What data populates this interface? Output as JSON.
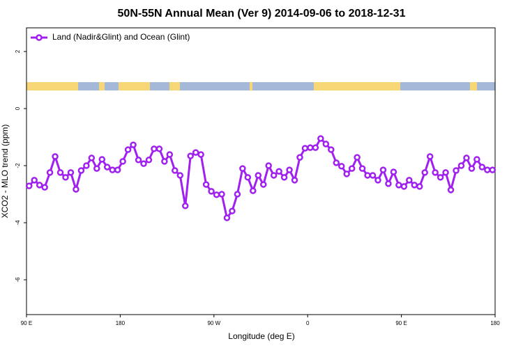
{
  "chart_data": {
    "type": "line",
    "title": "50N-55N Annual Mean (Ver 9)   2014-09-06 to 2018-12-31",
    "x_label": "Longitude (deg E)",
    "y_label": "XCO2 - MLO trend (ppm)",
    "x": [
      92.5,
      97.5,
      102.5,
      107.5,
      112.5,
      117.5,
      122.5,
      127.5,
      132.5,
      137.5,
      142.5,
      147.5,
      152.5,
      157.5,
      162.5,
      167.5,
      172.5,
      177.5,
      182.5,
      187.5,
      192.5,
      197.5,
      202.5,
      207.5,
      212.5,
      217.5,
      222.5,
      227.5,
      232.5,
      237.5,
      242.5,
      247.5,
      252.5,
      257.5,
      262.5,
      267.5,
      272.5,
      277.5,
      282.5,
      287.5,
      292.5,
      297.5,
      302.5,
      307.5,
      312.5,
      317.5,
      322.5,
      327.5,
      332.5,
      337.5,
      342.5,
      347.5,
      352.5,
      357.5,
      362.5,
      367.5,
      372.5,
      377.5,
      382.5,
      387.5,
      392.5,
      397.5,
      402.5,
      407.5,
      412.5,
      417.5,
      422.5,
      427.5,
      432.5,
      437.5,
      442.5,
      447.5,
      452.5,
      457.5,
      462.5,
      467.5,
      472.5,
      477.5,
      482.5,
      487.5,
      492.5,
      497.5,
      502.5,
      507.5,
      512.5,
      517.5,
      522.5,
      527.5,
      532.5,
      537.5
    ],
    "series": [
      {
        "name": "Land (Nadir&Glint) and Ocean (Glint)",
        "color": "#a020f0",
        "values": [
          -2.71,
          -2.51,
          -2.68,
          -2.76,
          -2.24,
          -1.68,
          -2.24,
          -2.41,
          -2.24,
          -2.83,
          -2.17,
          -2.0,
          -1.73,
          -2.1,
          -1.78,
          -2.05,
          -2.15,
          -2.15,
          -1.85,
          -1.44,
          -1.27,
          -1.8,
          -1.93,
          -1.8,
          -1.41,
          -1.41,
          -1.85,
          -1.61,
          -2.17,
          -2.34,
          -3.41,
          -1.66,
          -1.54,
          -1.61,
          -2.66,
          -2.9,
          -3.02,
          -3.0,
          -3.83,
          -3.59,
          -3.0,
          -2.1,
          -2.41,
          -2.88,
          -2.34,
          -2.66,
          -2.0,
          -2.34,
          -2.2,
          -2.41,
          -2.15,
          -2.51,
          -1.71,
          -1.39,
          -1.37,
          -1.37,
          -1.05,
          -1.24,
          -1.44,
          -1.9,
          -2.02,
          -2.29,
          -2.1,
          -1.71,
          -2.1,
          -2.34,
          -2.34,
          -2.51,
          -2.15,
          -2.63,
          -2.22,
          -2.68,
          -2.73,
          -2.51,
          -2.68,
          -2.73,
          -2.24,
          -1.68,
          -2.24,
          -2.41,
          -2.24,
          -2.85,
          -2.17,
          -2.0,
          -1.73,
          -2.1,
          -1.78,
          -2.05,
          -2.15,
          -2.15
        ]
      }
    ],
    "xlim": [
      90,
      540
    ],
    "xticks": [
      {
        "value": 90,
        "label": "90 E"
      },
      180,
      {
        "value": 270,
        "label": "90 W"
      },
      {
        "value": 360,
        "label": "0"
      },
      {
        "value": 450,
        "label": "90 E"
      },
      {
        "value": 540,
        "label": "180"
      }
    ],
    "ylim": [
      -7.22,
      2.83
    ],
    "yticks": [
      -6,
      -4,
      -2,
      0,
      2
    ],
    "legend": "top-left"
  }
}
